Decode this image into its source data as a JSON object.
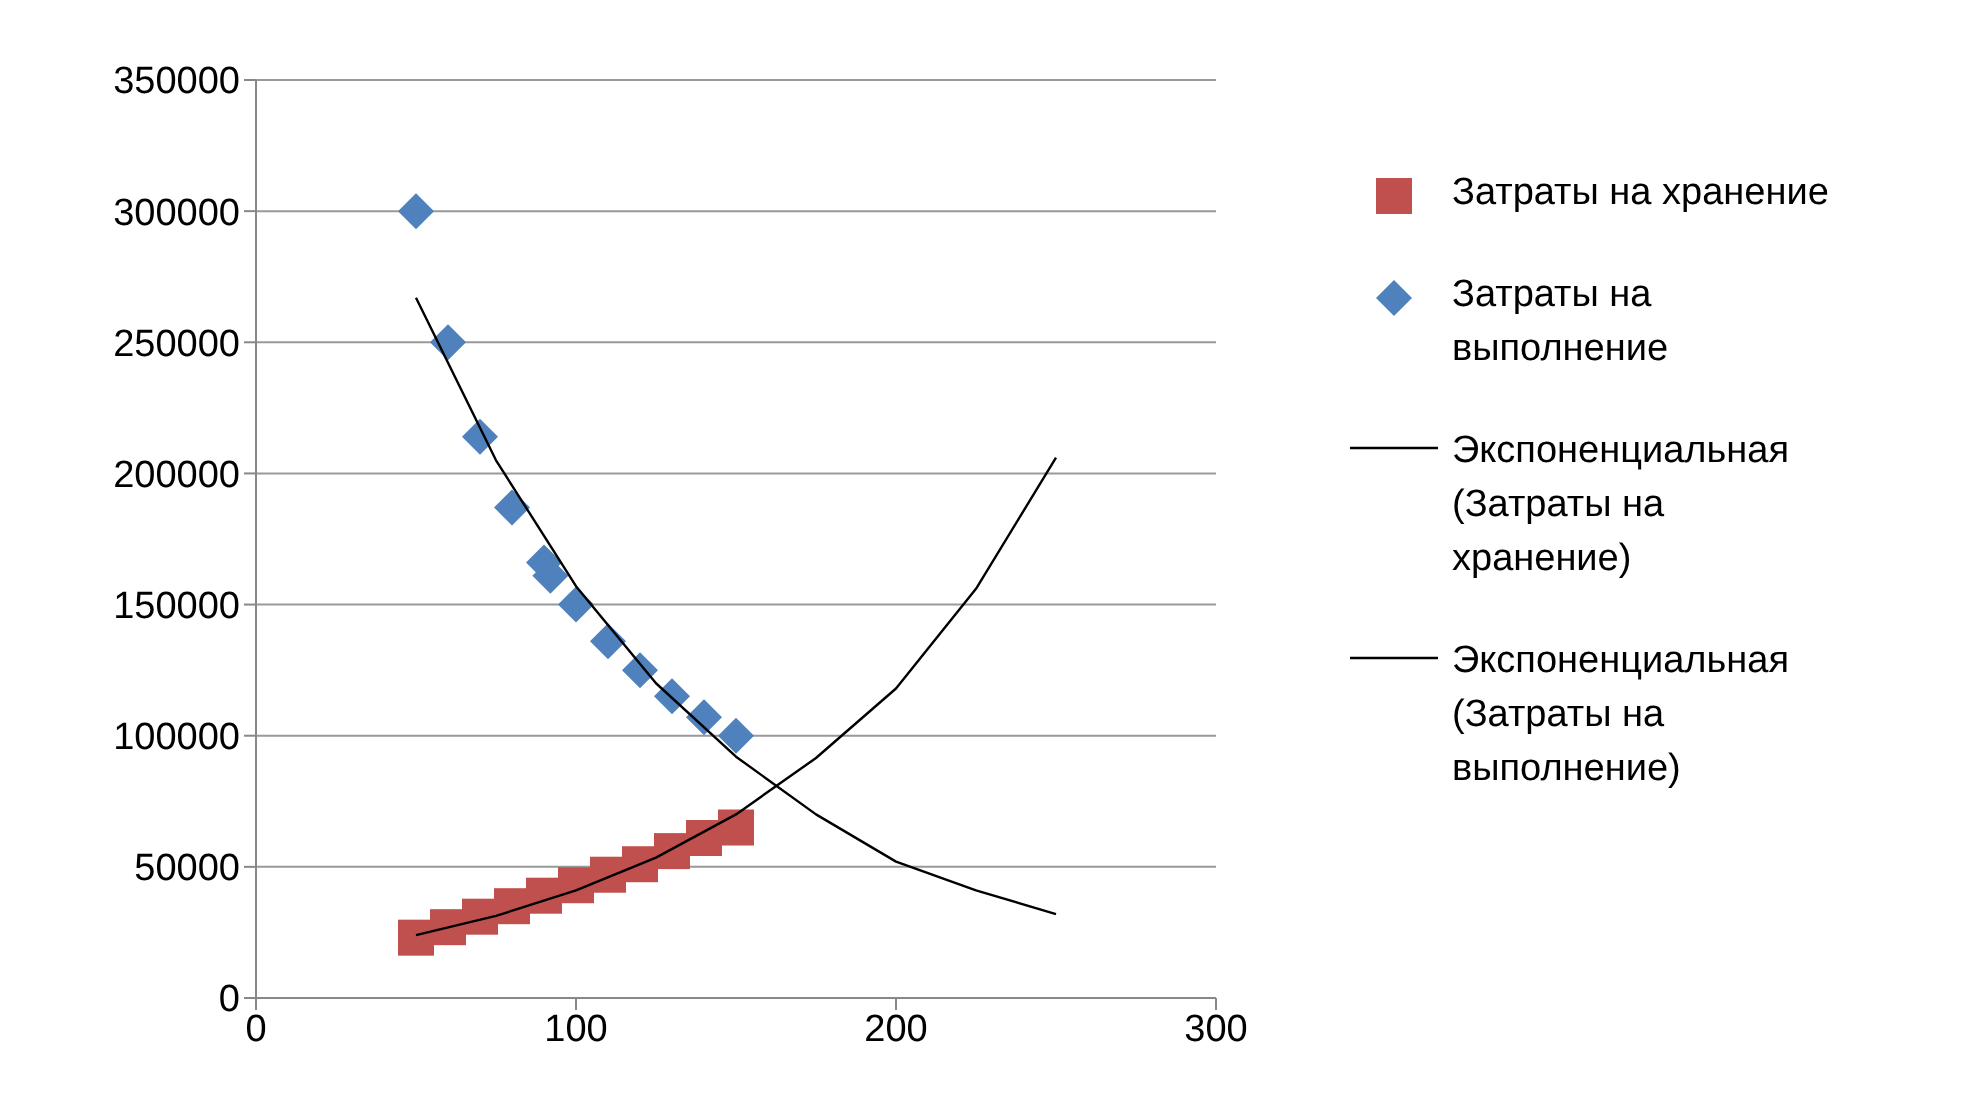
{
  "chart_data": {
    "type": "scatter",
    "xlim": [
      0,
      300
    ],
    "xticks": [
      0,
      100,
      200,
      300
    ],
    "ylim": [
      0,
      350000
    ],
    "yticks": [
      0,
      50000,
      100000,
      150000,
      200000,
      250000,
      300000,
      350000
    ],
    "grid": "y",
    "legend": "right",
    "series": [
      {
        "name": "Затраты на хранение",
        "marker": "square",
        "color": "#c0504d",
        "x": [
          50,
          60,
          70,
          80,
          90,
          100,
          110,
          120,
          130,
          140,
          150
        ],
        "values": [
          23000,
          27000,
          31000,
          35000,
          39000,
          43000,
          47000,
          51000,
          56000,
          61000,
          65000
        ]
      },
      {
        "name": "Затраты на выполнение",
        "marker": "diamond",
        "color": "#4f81bd",
        "x": [
          50,
          60,
          70,
          80,
          90,
          92,
          100,
          110,
          120,
          130,
          140,
          150
        ],
        "values": [
          300000,
          250000,
          214000,
          187000,
          166000,
          161000,
          150000,
          136000,
          125000,
          115000,
          107000,
          100000
        ]
      },
      {
        "name": "Экспоненциальная (Затраты на хранение)",
        "type": "line",
        "color": "#000000",
        "x": [
          50,
          75,
          100,
          125,
          150,
          175,
          200,
          225,
          250
        ],
        "values": [
          24000,
          31300,
          41000,
          53500,
          70000,
          91500,
          118000,
          156000,
          206000
        ]
      },
      {
        "name": "Экспоненциальная (Затраты на выполнение)",
        "type": "line",
        "color": "#000000",
        "x": [
          50,
          75,
          100,
          125,
          150,
          175,
          200,
          225,
          250
        ],
        "values": [
          267000,
          205000,
          157000,
          120000,
          92000,
          70000,
          52000,
          41000,
          32000
        ]
      }
    ]
  }
}
